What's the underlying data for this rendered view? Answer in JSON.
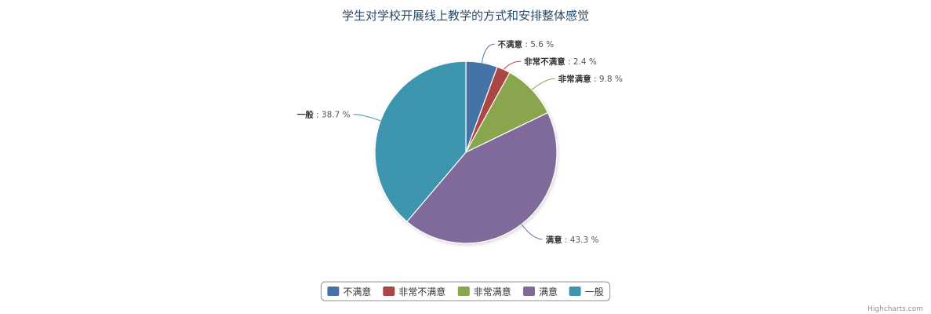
{
  "chart_data": {
    "type": "pie",
    "title": "学生对学校开展线上教学的方式和安排整体感觉",
    "unit_suffix": " %",
    "slices": [
      {
        "name": "不满意",
        "value": 5.6,
        "color": "#4572a7"
      },
      {
        "name": "非常不满意",
        "value": 2.4,
        "color": "#aa4643"
      },
      {
        "name": "非常满意",
        "value": 9.8,
        "color": "#89a54e"
      },
      {
        "name": "满意",
        "value": 43.3,
        "color": "#80699b"
      },
      {
        "name": "一般",
        "value": 38.7,
        "color": "#3d96ae"
      }
    ],
    "legend_position": "bottom-center",
    "credits": "Highcharts.com"
  }
}
